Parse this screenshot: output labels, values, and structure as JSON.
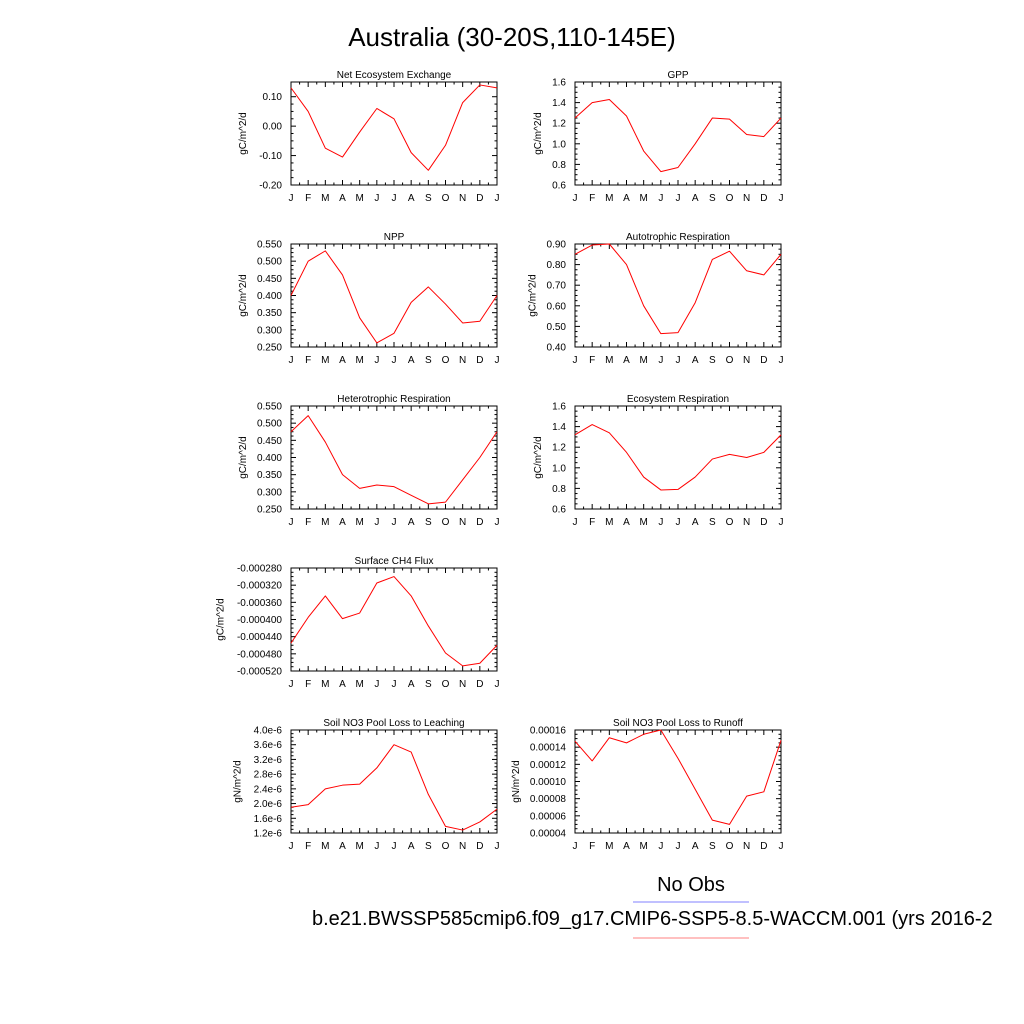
{
  "figure": {
    "title": "Australia (30-20S,110-145E)",
    "legend": {
      "obs_label": "No Obs",
      "case_label": "b.e21.BWSSP585cmip6.f09_g17.CMIP6-SSP5-8.5-WACCM.001 (yrs 2016-2",
      "obs_color": "#8080ff",
      "case_color": "#ff8080"
    }
  },
  "chart_data": [
    {
      "type": "line",
      "title": "Net Ecosystem Exchange",
      "ylabel": "gC/m^2/d",
      "xlabel": "",
      "categories": [
        "J",
        "F",
        "M",
        "A",
        "M",
        "J",
        "J",
        "A",
        "S",
        "O",
        "N",
        "D",
        "J"
      ],
      "ylim": [
        -0.2,
        0.15
      ],
      "yticks": [
        -0.2,
        -0.1,
        0.0,
        0.1
      ],
      "ytick_labels": [
        "-0.20",
        "-0.10",
        "0.00",
        "0.10"
      ],
      "series": [
        {
          "color": "#ff0000",
          "values": [
            0.13,
            0.05,
            -0.075,
            -0.105,
            -0.02,
            0.06,
            0.025,
            -0.09,
            -0.15,
            -0.065,
            0.08,
            0.14,
            0.13
          ]
        }
      ]
    },
    {
      "type": "line",
      "title": "GPP",
      "ylabel": "gC/m^2/d",
      "xlabel": "",
      "categories": [
        "J",
        "F",
        "M",
        "A",
        "M",
        "J",
        "J",
        "A",
        "S",
        "O",
        "N",
        "D",
        "J"
      ],
      "ylim": [
        0.6,
        1.6
      ],
      "yticks": [
        0.6,
        0.8,
        1.0,
        1.2,
        1.4,
        1.6
      ],
      "ytick_labels": [
        "0.6",
        "0.8",
        "1.0",
        "1.2",
        "1.4",
        "1.6"
      ],
      "series": [
        {
          "color": "#ff0000",
          "values": [
            1.25,
            1.4,
            1.43,
            1.27,
            0.93,
            0.73,
            0.77,
            1.0,
            1.25,
            1.24,
            1.09,
            1.07,
            1.25
          ]
        }
      ]
    },
    {
      "type": "line",
      "title": "NPP",
      "ylabel": "gC/m^2/d",
      "xlabel": "",
      "categories": [
        "J",
        "F",
        "M",
        "A",
        "M",
        "J",
        "J",
        "A",
        "S",
        "O",
        "N",
        "D",
        "J"
      ],
      "ylim": [
        0.25,
        0.55
      ],
      "yticks": [
        0.25,
        0.3,
        0.35,
        0.4,
        0.45,
        0.5,
        0.55
      ],
      "ytick_labels": [
        "0.250",
        "0.300",
        "0.350",
        "0.400",
        "0.450",
        "0.500",
        "0.550"
      ],
      "series": [
        {
          "color": "#ff0000",
          "values": [
            0.4,
            0.5,
            0.53,
            0.46,
            0.335,
            0.262,
            0.29,
            0.38,
            0.425,
            0.375,
            0.32,
            0.325,
            0.4
          ]
        }
      ]
    },
    {
      "type": "line",
      "title": "Autotrophic Respiration",
      "ylabel": "gC/m^2/d",
      "xlabel": "",
      "categories": [
        "J",
        "F",
        "M",
        "A",
        "M",
        "J",
        "J",
        "A",
        "S",
        "O",
        "N",
        "D",
        "J"
      ],
      "ylim": [
        0.4,
        0.9
      ],
      "yticks": [
        0.4,
        0.5,
        0.6,
        0.7,
        0.8,
        0.9
      ],
      "ytick_labels": [
        "0.40",
        "0.50",
        "0.60",
        "0.70",
        "0.80",
        "0.90"
      ],
      "series": [
        {
          "color": "#ff0000",
          "values": [
            0.85,
            0.895,
            0.9,
            0.8,
            0.6,
            0.465,
            0.47,
            0.615,
            0.825,
            0.865,
            0.77,
            0.75,
            0.85
          ]
        }
      ]
    },
    {
      "type": "line",
      "title": "Heterotrophic Respiration",
      "ylabel": "gC/m^2/d",
      "xlabel": "",
      "categories": [
        "J",
        "F",
        "M",
        "A",
        "M",
        "J",
        "J",
        "A",
        "S",
        "O",
        "N",
        "D",
        "J"
      ],
      "ylim": [
        0.25,
        0.55
      ],
      "yticks": [
        0.25,
        0.3,
        0.35,
        0.4,
        0.45,
        0.5,
        0.55
      ],
      "ytick_labels": [
        "0.250",
        "0.300",
        "0.350",
        "0.400",
        "0.450",
        "0.500",
        "0.550"
      ],
      "series": [
        {
          "color": "#ff0000",
          "values": [
            0.475,
            0.522,
            0.445,
            0.35,
            0.31,
            0.32,
            0.315,
            0.29,
            0.265,
            0.27,
            0.335,
            0.4,
            0.475
          ]
        }
      ]
    },
    {
      "type": "line",
      "title": "Ecosystem Respiration",
      "ylabel": "gC/m^2/d",
      "xlabel": "",
      "categories": [
        "J",
        "F",
        "M",
        "A",
        "M",
        "J",
        "J",
        "A",
        "S",
        "O",
        "N",
        "D",
        "J"
      ],
      "ylim": [
        0.6,
        1.6
      ],
      "yticks": [
        0.6,
        0.8,
        1.0,
        1.2,
        1.4,
        1.6
      ],
      "ytick_labels": [
        "0.6",
        "0.8",
        "1.0",
        "1.2",
        "1.4",
        "1.6"
      ],
      "series": [
        {
          "color": "#ff0000",
          "values": [
            1.32,
            1.42,
            1.34,
            1.15,
            0.91,
            0.785,
            0.79,
            0.91,
            1.085,
            1.13,
            1.1,
            1.15,
            1.32
          ]
        }
      ]
    },
    {
      "type": "line",
      "title": "Surface CH4 Flux",
      "ylabel": "gC/m^2/d",
      "xlabel": "",
      "categories": [
        "J",
        "F",
        "M",
        "A",
        "M",
        "J",
        "J",
        "A",
        "S",
        "O",
        "N",
        "D",
        "J"
      ],
      "ylim": [
        -0.00052,
        -0.00028
      ],
      "yticks": [
        -0.00052,
        -0.00048,
        -0.00044,
        -0.0004,
        -0.00036,
        -0.00032,
        -0.00028
      ],
      "ytick_labels": [
        "-0.000520",
        "-0.000480",
        "-0.000440",
        "-0.000400",
        "-0.000360",
        "-0.000320",
        "-0.000280"
      ],
      "series": [
        {
          "color": "#ff0000",
          "values": [
            -0.000455,
            -0.000395,
            -0.000345,
            -0.000398,
            -0.000385,
            -0.000315,
            -0.0003,
            -0.000345,
            -0.000415,
            -0.000478,
            -0.000508,
            -0.000502,
            -0.00046
          ]
        }
      ]
    },
    {
      "type": "line",
      "title": "Soil NO3 Pool Loss to Leaching",
      "ylabel": "gN/m^2/d",
      "xlabel": "",
      "categories": [
        "J",
        "F",
        "M",
        "A",
        "M",
        "J",
        "J",
        "A",
        "S",
        "O",
        "N",
        "D",
        "J"
      ],
      "ylim": [
        1.2e-06,
        4e-06
      ],
      "yticks": [
        1.2e-06,
        1.6e-06,
        2e-06,
        2.4e-06,
        2.8e-06,
        3.2e-06,
        3.6e-06,
        4e-06
      ],
      "ytick_labels": [
        "1.2e-6",
        "1.6e-6",
        "2.0e-6",
        "2.4e-6",
        "2.8e-6",
        "3.2e-6",
        "3.6e-6",
        "4.0e-6"
      ],
      "series": [
        {
          "color": "#ff0000",
          "values": [
            1.9e-06,
            1.97e-06,
            2.4e-06,
            2.5e-06,
            2.53e-06,
            2.97e-06,
            3.6e-06,
            3.4e-06,
            2.25e-06,
            1.38e-06,
            1.28e-06,
            1.5e-06,
            1.85e-06
          ]
        }
      ]
    },
    {
      "type": "line",
      "title": "Soil NO3 Pool Loss to Runoff",
      "ylabel": "gN/m^2/d",
      "xlabel": "",
      "categories": [
        "J",
        "F",
        "M",
        "A",
        "M",
        "J",
        "J",
        "A",
        "S",
        "O",
        "N",
        "D",
        "J"
      ],
      "ylim": [
        4e-05,
        0.00016
      ],
      "yticks": [
        4e-05,
        6e-05,
        8e-05,
        0.0001,
        0.00012,
        0.00014,
        0.00016
      ],
      "ytick_labels": [
        "0.00004",
        "0.00006",
        "0.00008",
        "0.00010",
        "0.00012",
        "0.00014",
        "0.00016"
      ],
      "series": [
        {
          "color": "#ff0000",
          "values": [
            0.000147,
            0.000124,
            0.000151,
            0.000145,
            0.000155,
            0.00016,
            0.000127,
            9.1e-05,
            5.5e-05,
            5e-05,
            8.3e-05,
            8.8e-05,
            0.000148
          ]
        }
      ]
    }
  ]
}
